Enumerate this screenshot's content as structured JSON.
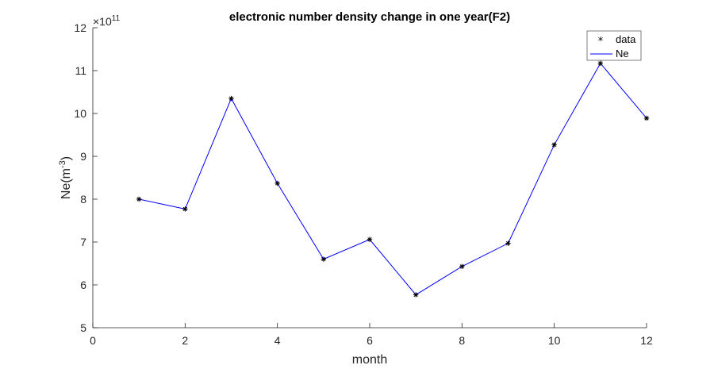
{
  "chart_data": {
    "type": "line",
    "title": "electronic number density change in one year(F2)",
    "xlabel": "month",
    "ylabel": "Ne(m^-3)",
    "y_exponent_label": {
      "base": "×10",
      "power": "11"
    },
    "xlim": [
      0,
      12
    ],
    "ylim": [
      5,
      12
    ],
    "xticks": [
      0,
      2,
      4,
      6,
      8,
      10,
      12
    ],
    "yticks": [
      5,
      6,
      7,
      8,
      9,
      10,
      11,
      12
    ],
    "scale_factor": 100000000000.0,
    "grid": false,
    "legend_position": "top-right",
    "series": [
      {
        "name": "data",
        "style": "markers",
        "marker": "*",
        "color": "#000000",
        "x": [
          1,
          2,
          3,
          4,
          5,
          6,
          7,
          8,
          9,
          10,
          11,
          12
        ],
        "values": [
          8.0,
          7.77,
          10.35,
          8.37,
          6.6,
          7.06,
          5.77,
          6.43,
          6.97,
          9.27,
          11.17,
          9.89
        ]
      },
      {
        "name": "Ne",
        "style": "line",
        "color": "#0000ff",
        "x": [
          1,
          2,
          3,
          4,
          5,
          6,
          7,
          8,
          9,
          10,
          11,
          12
        ],
        "values": [
          8.0,
          7.77,
          10.35,
          8.37,
          6.6,
          7.06,
          5.77,
          6.43,
          6.97,
          9.27,
          11.17,
          9.89
        ]
      }
    ]
  }
}
